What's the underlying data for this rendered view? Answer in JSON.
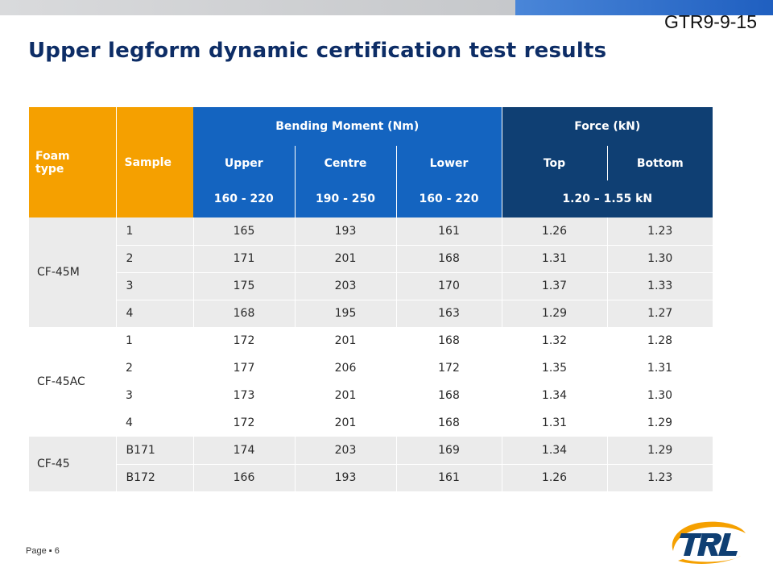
{
  "doc_ref": "GTR9-9-15",
  "title": "Upper legform dynamic certification test results",
  "table": {
    "head": {
      "foam_type": "Foam type",
      "sample": "Sample",
      "bending_moment": "Bending Moment (Nm)",
      "force": "Force (kN)",
      "upper": "Upper",
      "centre": "Centre",
      "lower": "Lower",
      "top": "Top",
      "bottom": "Bottom",
      "range_upper": "160 - 220",
      "range_centre": "190 - 250",
      "range_lower": "160 - 220",
      "range_force": "1.20 – 1.55 kN"
    },
    "groups": [
      {
        "name": "CF-45M",
        "shade": "shaded",
        "rows": [
          {
            "sample": "1",
            "upper": "165",
            "centre": "193",
            "lower": "161",
            "top": "1.26",
            "bottom": "1.23"
          },
          {
            "sample": "2",
            "upper": "171",
            "centre": "201",
            "lower": "168",
            "top": "1.31",
            "bottom": "1.30"
          },
          {
            "sample": "3",
            "upper": "175",
            "centre": "203",
            "lower": "170",
            "top": "1.37",
            "bottom": "1.33"
          },
          {
            "sample": "4",
            "upper": "168",
            "centre": "195",
            "lower": "163",
            "top": "1.29",
            "bottom": "1.27"
          }
        ]
      },
      {
        "name": "CF-45AC",
        "shade": "plain",
        "rows": [
          {
            "sample": "1",
            "upper": "172",
            "centre": "201",
            "lower": "168",
            "top": "1.32",
            "bottom": "1.28"
          },
          {
            "sample": "2",
            "upper": "177",
            "centre": "206",
            "lower": "172",
            "top": "1.35",
            "bottom": "1.31"
          },
          {
            "sample": "3",
            "upper": "173",
            "centre": "201",
            "lower": "168",
            "top": "1.34",
            "bottom": "1.30"
          },
          {
            "sample": "4",
            "upper": "172",
            "centre": "201",
            "lower": "168",
            "top": "1.31",
            "bottom": "1.29"
          }
        ]
      },
      {
        "name": "CF-45",
        "shade": "shaded",
        "rows": [
          {
            "sample": "B171",
            "upper": "174",
            "centre": "203",
            "lower": "169",
            "top": "1.34",
            "bottom": "1.29"
          },
          {
            "sample": "B172",
            "upper": "166",
            "centre": "193",
            "lower": "161",
            "top": "1.26",
            "bottom": "1.23"
          }
        ]
      }
    ]
  },
  "footer": {
    "page": "Page ▪ 6"
  },
  "logo": {
    "text": "TRL",
    "icon": "trl-logo-icon",
    "colors": {
      "navy": "#0f3f73",
      "orange": "#f5a000"
    }
  }
}
